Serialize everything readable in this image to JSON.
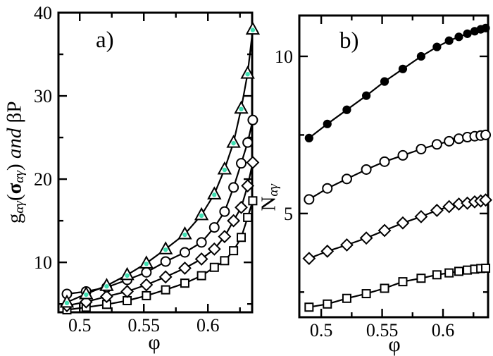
{
  "figure": {
    "background": "#ffffff",
    "line_color": "#000000",
    "accent_marker_dot_color": "#3fdfb2"
  },
  "chart_data": [
    {
      "type": "line",
      "panel_label": "a)",
      "xlabel": "φ",
      "ylabel": "gαγ(σαγ) and βP",
      "ylabel_rich": [
        [
          "g",
          ""
        ],
        [
          "αγ",
          "sub italic"
        ],
        [
          "(",
          ""
        ],
        [
          "σ",
          "bold"
        ],
        [
          "αγ",
          "sub italic"
        ],
        [
          ")",
          ""
        ],
        [
          " ",
          ""
        ],
        [
          "and",
          "italic"
        ],
        [
          " βP",
          ""
        ]
      ],
      "xlim": [
        0.4834,
        0.6345
      ],
      "ylim": [
        4,
        40
      ],
      "x_major_ticks": [
        0.5,
        0.55,
        0.6
      ],
      "x_minor_ticks": [
        0.525,
        0.575,
        0.625
      ],
      "y_major_ticks": [
        10,
        20,
        30,
        40
      ],
      "y_minor_ticks": [
        5,
        15,
        25,
        35
      ],
      "grid": false,
      "legend": "none",
      "x": [
        0.49,
        0.505,
        0.521,
        0.537,
        0.552,
        0.567,
        0.582,
        0.595,
        0.605,
        0.613,
        0.62,
        0.626,
        0.631,
        0.635
      ],
      "series": [
        {
          "name": "triangle-teal-dot",
          "marker": "triangle",
          "dot_color": "#3fdfb2",
          "values": [
            5.2,
            6.2,
            7.2,
            8.5,
            9.9,
            11.6,
            13.4,
            15.7,
            18.2,
            21.2,
            24.4,
            28.5,
            32.7,
            38.0
          ]
        },
        {
          "name": "open-circle",
          "marker": "circle",
          "values": [
            6.2,
            6.5,
            7.0,
            7.9,
            8.8,
            10.1,
            11.2,
            12.4,
            14.2,
            16.1,
            19.0,
            21.9,
            24.4,
            27.1
          ]
        },
        {
          "name": "open-diamond",
          "marker": "diamond",
          "values": [
            4.8,
            5.25,
            5.9,
            6.5,
            7.3,
            8.25,
            9.3,
            10.4,
            11.6,
            13.1,
            15.0,
            16.6,
            19.2,
            22.0
          ]
        },
        {
          "name": "open-square",
          "marker": "square",
          "values": [
            4.3,
            4.6,
            4.95,
            5.4,
            6.0,
            6.7,
            7.5,
            8.4,
            9.4,
            10.2,
            11.4,
            13.0,
            15.4,
            17.4
          ]
        }
      ]
    },
    {
      "type": "line",
      "panel_label": "b)",
      "xlabel": "φ",
      "ylabel": "Nαγ",
      "ylabel_rich": [
        [
          "N",
          ""
        ],
        [
          "αγ",
          "sub italic"
        ]
      ],
      "xlim": [
        0.482,
        0.637
      ],
      "ylim": [
        1.7,
        11.3
      ],
      "x_major_ticks": [
        0.5,
        0.55,
        0.6
      ],
      "x_minor_ticks": [
        0.525,
        0.575,
        0.625
      ],
      "y_major_ticks": [
        5,
        10
      ],
      "y_minor_ticks": [
        2.5,
        7.5
      ],
      "grid": false,
      "legend": "none",
      "x": [
        0.49,
        0.505,
        0.521,
        0.537,
        0.552,
        0.567,
        0.582,
        0.595,
        0.605,
        0.613,
        0.62,
        0.626,
        0.631,
        0.635
      ],
      "series": [
        {
          "name": "filled-circle",
          "marker": "circle-filled",
          "values": [
            7.4,
            7.85,
            8.3,
            8.75,
            9.2,
            9.6,
            10.0,
            10.3,
            10.5,
            10.62,
            10.72,
            10.8,
            10.86,
            10.9
          ]
        },
        {
          "name": "open-circle",
          "marker": "circle",
          "values": [
            5.45,
            5.8,
            6.1,
            6.4,
            6.65,
            6.85,
            7.05,
            7.2,
            7.3,
            7.38,
            7.43,
            7.46,
            7.48,
            7.5
          ]
        },
        {
          "name": "open-diamond",
          "marker": "diamond",
          "values": [
            3.57,
            3.8,
            4.0,
            4.22,
            4.46,
            4.7,
            4.9,
            5.1,
            5.22,
            5.3,
            5.33,
            5.37,
            5.4,
            5.43
          ]
        },
        {
          "name": "open-square",
          "marker": "square",
          "values": [
            2.02,
            2.12,
            2.3,
            2.45,
            2.62,
            2.83,
            2.94,
            3.05,
            3.11,
            3.16,
            3.2,
            3.23,
            3.25,
            3.26
          ]
        }
      ]
    }
  ]
}
